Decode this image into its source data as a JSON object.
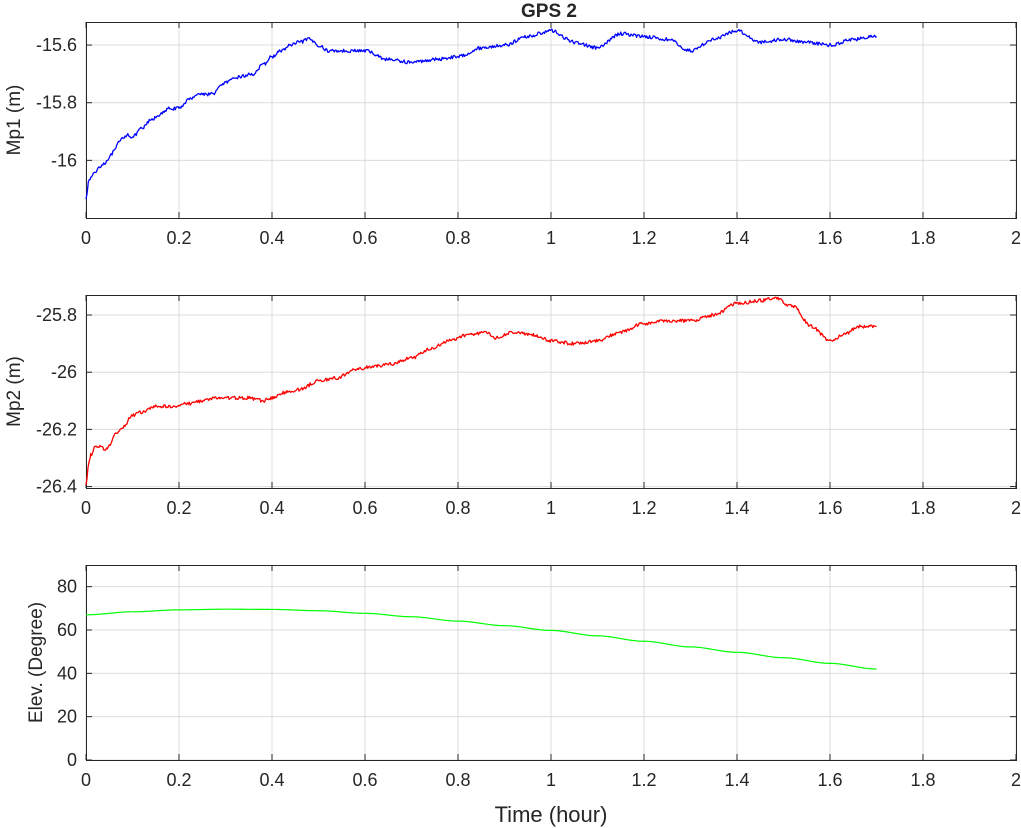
{
  "chart_data": [
    {
      "type": "line",
      "title": "GPS 2",
      "xlabel": "",
      "ylabel": "Mp1 (m)",
      "xlim": [
        0,
        2
      ],
      "ylim": [
        -16.2,
        -15.52
      ],
      "xticks": [
        0,
        0.2,
        0.4,
        0.6,
        0.8,
        1,
        1.2,
        1.4,
        1.6,
        1.8,
        2
      ],
      "xtick_labels": [
        "0",
        "0.2",
        "0.4",
        "0.6",
        "0.8",
        "1",
        "1.2",
        "1.4",
        "1.6",
        "1.8",
        "2"
      ],
      "yticks": [
        -16,
        -15.8,
        -15.6
      ],
      "ytick_labels": [
        "-16",
        "-15.8",
        "-15.6"
      ],
      "grid": true,
      "noise": 0.006,
      "series": [
        {
          "color": "#0000ff",
          "x": [
            0,
            0.005,
            0.01,
            0.02,
            0.03,
            0.04,
            0.05,
            0.06,
            0.07,
            0.08,
            0.09,
            0.1,
            0.12,
            0.14,
            0.16,
            0.18,
            0.2,
            0.22,
            0.24,
            0.27,
            0.3,
            0.33,
            0.36,
            0.38,
            0.4,
            0.42,
            0.44,
            0.46,
            0.48,
            0.5,
            0.52,
            0.55,
            0.6,
            0.65,
            0.7,
            0.75,
            0.8,
            0.85,
            0.9,
            0.95,
            1.0,
            1.05,
            1.1,
            1.15,
            1.2,
            1.25,
            1.3,
            1.35,
            1.4,
            1.45,
            1.5,
            1.55,
            1.6,
            1.65,
            1.7
          ],
          "y": [
            -16.13,
            -16.08,
            -16.06,
            -16.04,
            -16.02,
            -16.01,
            -15.99,
            -15.97,
            -15.94,
            -15.92,
            -15.91,
            -15.92,
            -15.89,
            -15.86,
            -15.84,
            -15.82,
            -15.82,
            -15.79,
            -15.77,
            -15.77,
            -15.73,
            -15.71,
            -15.7,
            -15.67,
            -15.64,
            -15.62,
            -15.6,
            -15.59,
            -15.58,
            -15.6,
            -15.62,
            -15.62,
            -15.62,
            -15.65,
            -15.66,
            -15.65,
            -15.64,
            -15.61,
            -15.6,
            -15.57,
            -15.55,
            -15.59,
            -15.61,
            -15.56,
            -15.57,
            -15.58,
            -15.62,
            -15.58,
            -15.55,
            -15.59,
            -15.58,
            -15.59,
            -15.6,
            -15.58,
            -15.57
          ]
        }
      ]
    },
    {
      "type": "line",
      "title": "",
      "xlabel": "",
      "ylabel": "Mp2 (m)",
      "xlim": [
        0,
        2
      ],
      "ylim": [
        -26.405,
        -25.73
      ],
      "xticks": [
        0,
        0.2,
        0.4,
        0.6,
        0.8,
        1,
        1.2,
        1.4,
        1.6,
        1.8,
        2
      ],
      "xtick_labels": [
        "0",
        "0.2",
        "0.4",
        "0.6",
        "0.8",
        "1",
        "1.2",
        "1.4",
        "1.6",
        "1.8",
        "2"
      ],
      "yticks": [
        -26.4,
        -26.2,
        -26,
        -25.8
      ],
      "ytick_labels": [
        "-26.4",
        "-26.2",
        "-26",
        "-25.8"
      ],
      "grid": true,
      "noise": 0.006,
      "series": [
        {
          "color": "#ff0000",
          "x": [
            0,
            0.005,
            0.01,
            0.02,
            0.03,
            0.04,
            0.05,
            0.06,
            0.08,
            0.1,
            0.12,
            0.15,
            0.18,
            0.22,
            0.25,
            0.28,
            0.32,
            0.35,
            0.38,
            0.4,
            0.43,
            0.46,
            0.5,
            0.54,
            0.58,
            0.62,
            0.66,
            0.7,
            0.74,
            0.78,
            0.82,
            0.86,
            0.88,
            0.92,
            0.96,
            1.0,
            1.05,
            1.1,
            1.15,
            1.2,
            1.25,
            1.3,
            1.35,
            1.4,
            1.45,
            1.48,
            1.52,
            1.56,
            1.6,
            1.63,
            1.66,
            1.7
          ],
          "y": [
            -26.4,
            -26.33,
            -26.29,
            -26.26,
            -26.26,
            -26.27,
            -26.26,
            -26.22,
            -26.19,
            -26.15,
            -26.14,
            -26.12,
            -26.12,
            -26.11,
            -26.1,
            -26.09,
            -26.09,
            -26.09,
            -26.1,
            -26.09,
            -26.07,
            -26.06,
            -26.03,
            -26.02,
            -25.99,
            -25.98,
            -25.97,
            -25.95,
            -25.92,
            -25.89,
            -25.87,
            -25.86,
            -25.88,
            -25.86,
            -25.87,
            -25.89,
            -25.9,
            -25.89,
            -25.86,
            -25.83,
            -25.82,
            -25.82,
            -25.8,
            -25.76,
            -25.75,
            -25.74,
            -25.77,
            -25.84,
            -25.89,
            -25.87,
            -25.84,
            -25.84
          ]
        }
      ]
    },
    {
      "type": "line",
      "title": "",
      "xlabel": "Time (hour)",
      "ylabel": "Elev. (Degree)",
      "xlim": [
        0,
        2
      ],
      "ylim": [
        0,
        90
      ],
      "xticks": [
        0,
        0.2,
        0.4,
        0.6,
        0.8,
        1,
        1.2,
        1.4,
        1.6,
        1.8,
        2
      ],
      "xtick_labels": [
        "0",
        "0.2",
        "0.4",
        "0.6",
        "0.8",
        "1",
        "1.2",
        "1.4",
        "1.6",
        "1.8",
        "2"
      ],
      "yticks": [
        0,
        20,
        40,
        60,
        80
      ],
      "ytick_labels": [
        "0",
        "20",
        "40",
        "60",
        "80"
      ],
      "grid": true,
      "noise": 0,
      "series": [
        {
          "color": "#00ff00",
          "x": [
            0,
            0.1,
            0.2,
            0.3,
            0.4,
            0.5,
            0.6,
            0.7,
            0.8,
            0.9,
            1.0,
            1.1,
            1.2,
            1.3,
            1.4,
            1.5,
            1.6,
            1.7
          ],
          "y": [
            67,
            68.4,
            69.3,
            69.6,
            69.5,
            68.9,
            67.7,
            66.1,
            64.1,
            62,
            59.8,
            57.3,
            54.8,
            52.2,
            49.7,
            47.2,
            44.6,
            42
          ]
        }
      ]
    }
  ]
}
